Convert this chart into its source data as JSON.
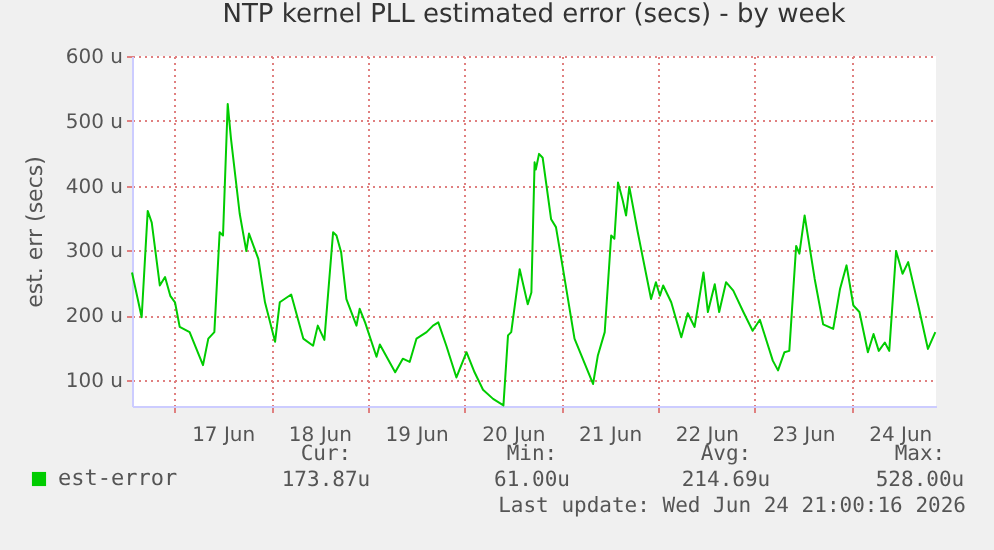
{
  "chart_data": {
    "type": "line",
    "title": "NTP kernel PLL estimated error (secs) - by week",
    "ylabel": "est. err (secs)",
    "xlim": [
      "2026-06-16T13:30",
      "2026-06-24T21:00"
    ],
    "ylim": [
      60,
      600
    ],
    "xticks": [
      {
        "value": "2026-06-17T00:00",
        "label": null
      },
      {
        "value": "2026-06-17T12:00",
        "label": "17 Jun"
      },
      {
        "value": "2026-06-18T00:00",
        "label": null
      },
      {
        "value": "2026-06-18T12:00",
        "label": "18 Jun"
      },
      {
        "value": "2026-06-19T00:00",
        "label": null
      },
      {
        "value": "2026-06-19T12:00",
        "label": "19 Jun"
      },
      {
        "value": "2026-06-20T00:00",
        "label": null
      },
      {
        "value": "2026-06-20T12:00",
        "label": "20 Jun"
      },
      {
        "value": "2026-06-21T00:00",
        "label": null
      },
      {
        "value": "2026-06-21T12:00",
        "label": "21 Jun"
      },
      {
        "value": "2026-06-22T00:00",
        "label": null
      },
      {
        "value": "2026-06-22T12:00",
        "label": "22 Jun"
      },
      {
        "value": "2026-06-23T00:00",
        "label": null
      },
      {
        "value": "2026-06-23T12:00",
        "label": "23 Jun"
      },
      {
        "value": "2026-06-24T00:00",
        "label": null
      },
      {
        "value": "2026-06-24T12:00",
        "label": "24 Jun"
      }
    ],
    "yticks": [
      {
        "value": 100,
        "label": "100 u"
      },
      {
        "value": 200,
        "label": "200 u"
      },
      {
        "value": 300,
        "label": "300 u"
      },
      {
        "value": 400,
        "label": "400 u"
      },
      {
        "value": 500,
        "label": "500 u"
      },
      {
        "value": 600,
        "label": "600 u"
      }
    ],
    "grid": true,
    "legend": "bottom",
    "marker": "none",
    "line_style": "solid",
    "series": [
      {
        "name": "est-error",
        "color": "#00cc00",
        "x": [
          "2026-06-16T13:30",
          "2026-06-16T15:54",
          "2026-06-16T17:24",
          "2026-06-16T18:24",
          "2026-06-16T20:24",
          "2026-06-16T21:42",
          "2026-06-16T23:00",
          "2026-06-17T00:10",
          "2026-06-17T01:20",
          "2026-06-17T03:48",
          "2026-06-17T07:07",
          "2026-06-17T08:26",
          "2026-06-17T09:56",
          "2026-06-17T11:15",
          "2026-06-17T12:05",
          "2026-06-17T13:15",
          "2026-06-17T14:04",
          "2026-06-17T16:13",
          "2026-06-17T17:52",
          "2026-06-17T18:32",
          "2026-06-17T20:51",
          "2026-06-17T22:30",
          "2026-06-18T01:00",
          "2026-06-18T02:10",
          "2026-06-18T05:00",
          "2026-06-18T08:00",
          "2026-06-18T10:26",
          "2026-06-18T11:36",
          "2026-06-18T13:14",
          "2026-06-18T15:24",
          "2026-06-18T16:14",
          "2026-06-18T17:24",
          "2026-06-18T18:42",
          "2026-06-18T21:12",
          "2026-06-18T22:00",
          "2026-06-18T23:20",
          "2026-06-19T02:10",
          "2026-06-19T03:00",
          "2026-06-19T06:48",
          "2026-06-19T08:42",
          "2026-06-19T10:24",
          "2026-06-19T12:06",
          "2026-06-19T14:36",
          "2026-06-19T16:12",
          "2026-06-19T17:30",
          "2026-06-19T19:30",
          "2026-06-19T22:00",
          "2026-06-20T00:30",
          "2026-06-20T02:30",
          "2026-06-20T04:36",
          "2026-06-20T07:06",
          "2026-06-20T09:40",
          "2026-06-20T10:48",
          "2026-06-20T11:36",
          "2026-06-20T13:42",
          "2026-06-20T15:42",
          "2026-06-20T16:36",
          "2026-06-20T17:24",
          "2026-06-20T17:42",
          "2026-06-20T18:30",
          "2026-06-20T19:24",
          "2026-06-20T21:30",
          "2026-06-20T22:42",
          "2026-06-21T00:18",
          "2026-06-21T03:18",
          "2026-06-21T07:54",
          "2026-06-21T09:06",
          "2026-06-21T10:48",
          "2026-06-21T12:24",
          "2026-06-21T13:12",
          "2026-06-21T14:06",
          "2026-06-21T15:12",
          "2026-06-21T16:06",
          "2026-06-21T16:54",
          "2026-06-21T19:00",
          "2026-06-21T22:18",
          "2026-06-21T23:30",
          "2026-06-22T00:30",
          "2026-06-22T01:18",
          "2026-06-22T03:18",
          "2026-06-22T05:48",
          "2026-06-22T07:24",
          "2026-06-22T09:06",
          "2026-06-22T11:18",
          "2026-06-22T12:24",
          "2026-06-22T14:06",
          "2026-06-22T15:12",
          "2026-06-22T16:54",
          "2026-06-22T18:42",
          "2026-06-22T21:12",
          "2026-06-22T23:30",
          "2026-06-23T01:18",
          "2026-06-23T04:30",
          "2026-06-23T05:48",
          "2026-06-23T07:24",
          "2026-06-23T08:36",
          "2026-06-23T10:18",
          "2026-06-23T11:06",
          "2026-06-23T12:24",
          "2026-06-23T14:54",
          "2026-06-23T17:00",
          "2026-06-23T19:30",
          "2026-06-23T21:12",
          "2026-06-23T22:48",
          "2026-06-24T00:30",
          "2026-06-24T02:00",
          "2026-06-24T04:06",
          "2026-06-24T05:30",
          "2026-06-24T06:48",
          "2026-06-24T08:18",
          "2026-06-24T09:24",
          "2026-06-24T11:06",
          "2026-06-24T12:42",
          "2026-06-24T14:06",
          "2026-06-24T16:36",
          "2026-06-24T19:00",
          "2026-06-24T20:50"
        ],
        "values": [
          266,
          197,
          361,
          343,
          246,
          259,
          230,
          220,
          182,
          174,
          123,
          164,
          174,
          328,
          323,
          526,
          472,
          357,
          299,
          326,
          287,
          220,
          159,
          220,
          232,
          164,
          153,
          184,
          162,
          328,
          323,
          297,
          225,
          184,
          210,
          189,
          136,
          155,
          112,
          133,
          128,
          164,
          174,
          184,
          189,
          153,
          104,
          143,
          112,
          85,
          71,
          61,
          169,
          174,
          271,
          217,
          235,
          436,
          425,
          449,
          443,
          348,
          336,
          277,
          164,
          94,
          138,
          174,
          323,
          318,
          405,
          379,
          354,
          398,
          328,
          225,
          251,
          230,
          246,
          220,
          166,
          203,
          182,
          266,
          205,
          248,
          205,
          251,
          238,
          205,
          176,
          193,
          130,
          115,
          143,
          145,
          307,
          295,
          354,
          256,
          186,
          179,
          241,
          277,
          215,
          205,
          143,
          171,
          145,
          158,
          145,
          299,
          264,
          282,
          215,
          148,
          174
        ]
      }
    ],
    "annotations": [
      "Cur:",
      "173.87u",
      "Min:",
      "61.00u",
      "Avg:",
      "214.69u",
      "Max:",
      "528.00u",
      "Last update: Wed Jun 24 21:00:16 2026"
    ]
  }
}
